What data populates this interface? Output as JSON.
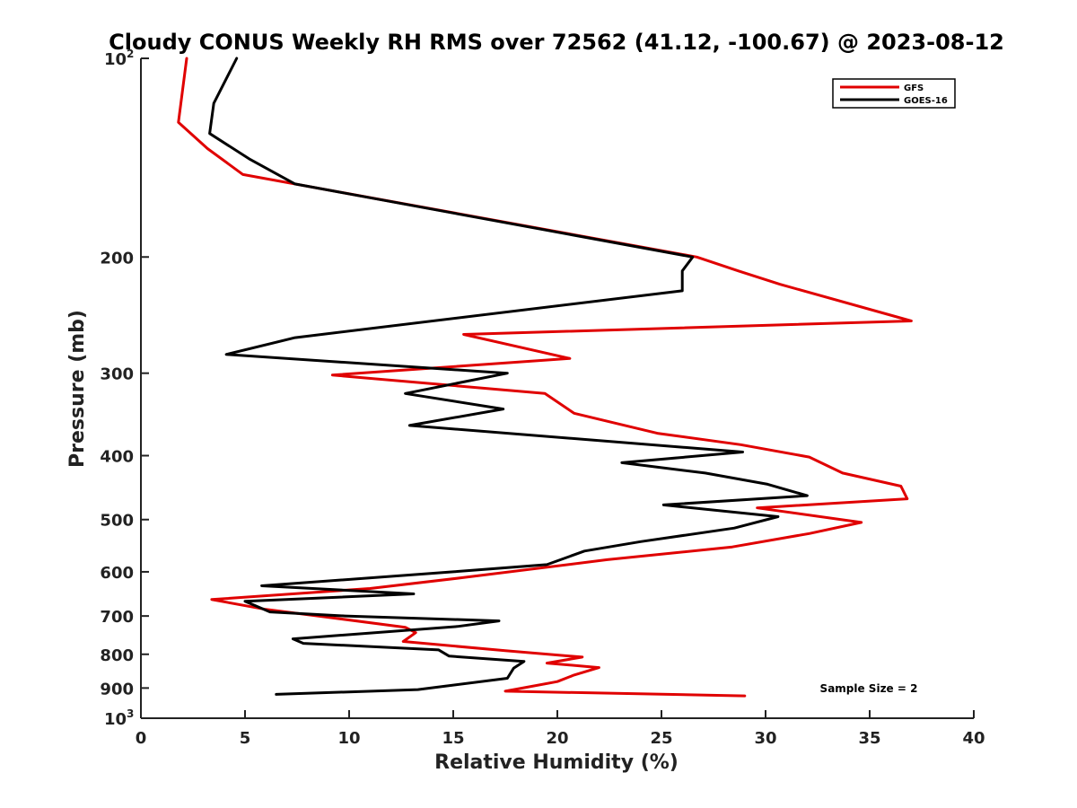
{
  "chart_data": {
    "type": "line",
    "title": "Cloudy CONUS Weekly RH RMS over 72562 (41.12, -100.67) @ 2023-08-12",
    "xlabel": "Relative Humidity (%)",
    "ylabel": "Pressure (mb)",
    "xlim": [
      0,
      40
    ],
    "ylim": [
      100,
      1000
    ],
    "yscale": "log",
    "y_reversed": true,
    "xticks": [
      "0",
      "5",
      "10",
      "15",
      "20",
      "25",
      "30",
      "35",
      "40"
    ],
    "yticks": [
      {
        "value": 100,
        "label": "10",
        "sup": "2"
      },
      {
        "value": 200,
        "label": "200"
      },
      {
        "value": 300,
        "label": "300"
      },
      {
        "value": 400,
        "label": "400"
      },
      {
        "value": 500,
        "label": "500"
      },
      {
        "value": 600,
        "label": "600"
      },
      {
        "value": 700,
        "label": "700"
      },
      {
        "value": 800,
        "label": "800"
      },
      {
        "value": 900,
        "label": "900"
      },
      {
        "value": 1000,
        "label": "10",
        "sup": "3"
      }
    ],
    "grid": false,
    "legend_position": "top-right",
    "annotation": "Sample Size = 2",
    "series": [
      {
        "name": "GFS",
        "color": "#e00000",
        "points": [
          [
            2.2,
            100
          ],
          [
            1.8,
            125
          ],
          [
            3.2,
            137
          ],
          [
            4.9,
            150
          ],
          [
            26.7,
            200
          ],
          [
            28.7,
            210
          ],
          [
            30.7,
            220
          ],
          [
            37.0,
            250
          ],
          [
            15.5,
            262
          ],
          [
            20.6,
            285
          ],
          [
            9.2,
            302
          ],
          [
            19.4,
            322
          ],
          [
            20.8,
            345
          ],
          [
            24.8,
            370
          ],
          [
            28.8,
            385
          ],
          [
            32.1,
            402
          ],
          [
            33.7,
            425
          ],
          [
            36.5,
            445
          ],
          [
            36.8,
            465
          ],
          [
            29.6,
            480
          ],
          [
            34.6,
            505
          ],
          [
            32.1,
            525
          ],
          [
            28.4,
            550
          ],
          [
            22.4,
            575
          ],
          [
            15.5,
            612
          ],
          [
            11.0,
            636
          ],
          [
            3.4,
            661
          ],
          [
            6.0,
            684
          ],
          [
            8.5,
            700
          ],
          [
            12.7,
            728
          ],
          [
            13.2,
            742
          ],
          [
            12.6,
            765
          ],
          [
            17.5,
            790
          ],
          [
            21.2,
            808
          ],
          [
            19.5,
            825
          ],
          [
            22.0,
            838
          ],
          [
            20.8,
            860
          ],
          [
            20.0,
            880
          ],
          [
            17.5,
            910
          ],
          [
            29.0,
            925
          ]
        ]
      },
      {
        "name": "GOES-16",
        "color": "#000000",
        "points": [
          [
            4.6,
            100
          ],
          [
            3.5,
            117
          ],
          [
            3.3,
            130
          ],
          [
            5.2,
            142
          ],
          [
            7.4,
            155
          ],
          [
            26.5,
            200
          ],
          [
            26.0,
            210
          ],
          [
            26.0,
            225
          ],
          [
            7.4,
            265
          ],
          [
            4.1,
            281
          ],
          [
            17.6,
            300
          ],
          [
            12.7,
            322
          ],
          [
            17.4,
            340
          ],
          [
            12.9,
            360
          ],
          [
            28.9,
            395
          ],
          [
            23.1,
            410
          ],
          [
            27.1,
            425
          ],
          [
            30.1,
            442
          ],
          [
            32.0,
            460
          ],
          [
            25.1,
            475
          ],
          [
            30.6,
            495
          ],
          [
            28.5,
            515
          ],
          [
            24.0,
            540
          ],
          [
            21.3,
            558
          ],
          [
            19.5,
            585
          ],
          [
            15.0,
            600
          ],
          [
            5.8,
            630
          ],
          [
            13.1,
            648
          ],
          [
            5.0,
            665
          ],
          [
            6.2,
            690
          ],
          [
            9.8,
            700
          ],
          [
            17.2,
            712
          ],
          [
            15.2,
            726
          ],
          [
            7.3,
            758
          ],
          [
            7.8,
            770
          ],
          [
            14.3,
            788
          ],
          [
            14.8,
            805
          ],
          [
            18.4,
            820
          ],
          [
            17.9,
            840
          ],
          [
            17.6,
            870
          ],
          [
            13.3,
            905
          ],
          [
            6.5,
            920
          ]
        ]
      }
    ]
  }
}
